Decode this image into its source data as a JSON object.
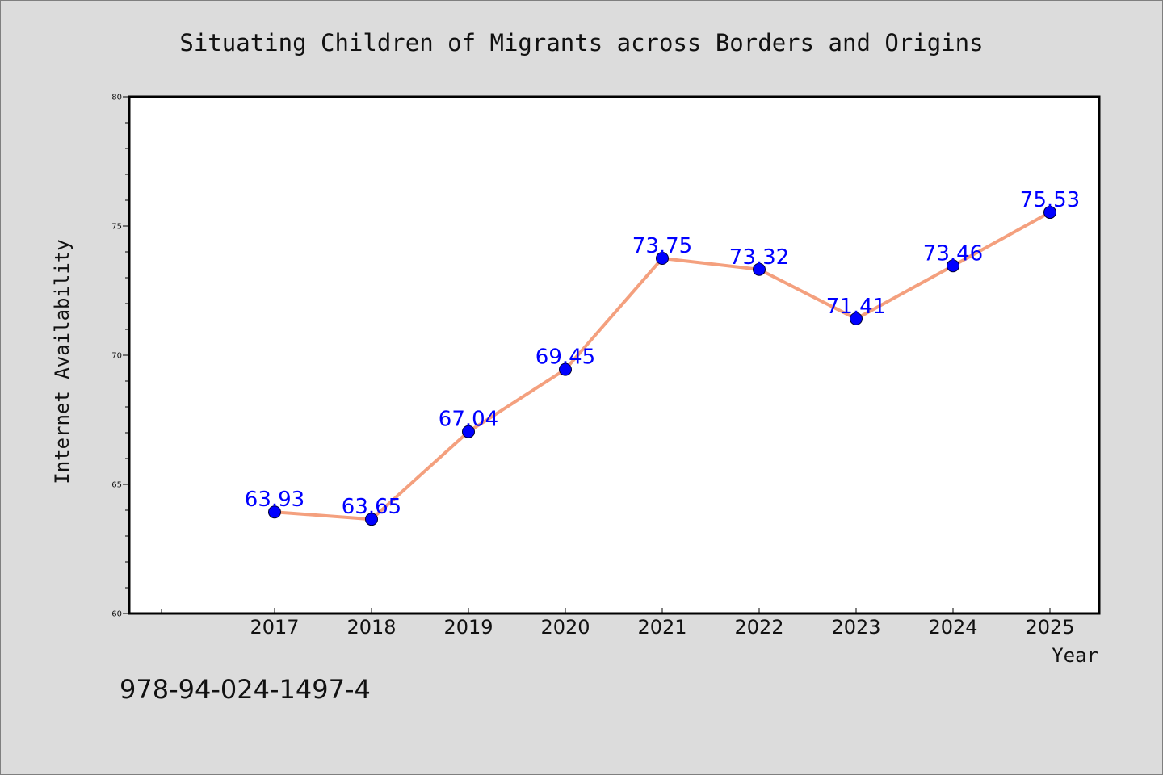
{
  "colors": {
    "background": "#dcdcdc",
    "plot_background": "#ffffff",
    "line": "#f4a07e",
    "marker": "#0000ff",
    "data_label": "#0000ff",
    "text": "#111111"
  },
  "footer": {
    "isbn": "978-94-024-1497-4"
  },
  "chart_data": {
    "type": "line",
    "title": "Situating Children of Migrants across Borders and Origins",
    "xlabel": "Year",
    "ylabel": "Internet Availability",
    "x": [
      "2017",
      "2018",
      "2019",
      "2020",
      "2021",
      "2022",
      "2023",
      "2024",
      "2025"
    ],
    "series": [
      {
        "values": [
          63.93,
          63.65,
          67.04,
          69.45,
          73.75,
          73.32,
          71.41,
          73.46,
          75.53
        ]
      }
    ],
    "data_labels": [
      "63.93",
      "63.65",
      "67.04",
      "69.45",
      "73.75",
      "73.32",
      "71.41",
      "73.46",
      "75.53"
    ],
    "ylim": [
      60,
      80
    ],
    "yticks": [
      "60",
      "65",
      "70",
      "75",
      "80"
    ],
    "grid": false,
    "legend": "none"
  }
}
